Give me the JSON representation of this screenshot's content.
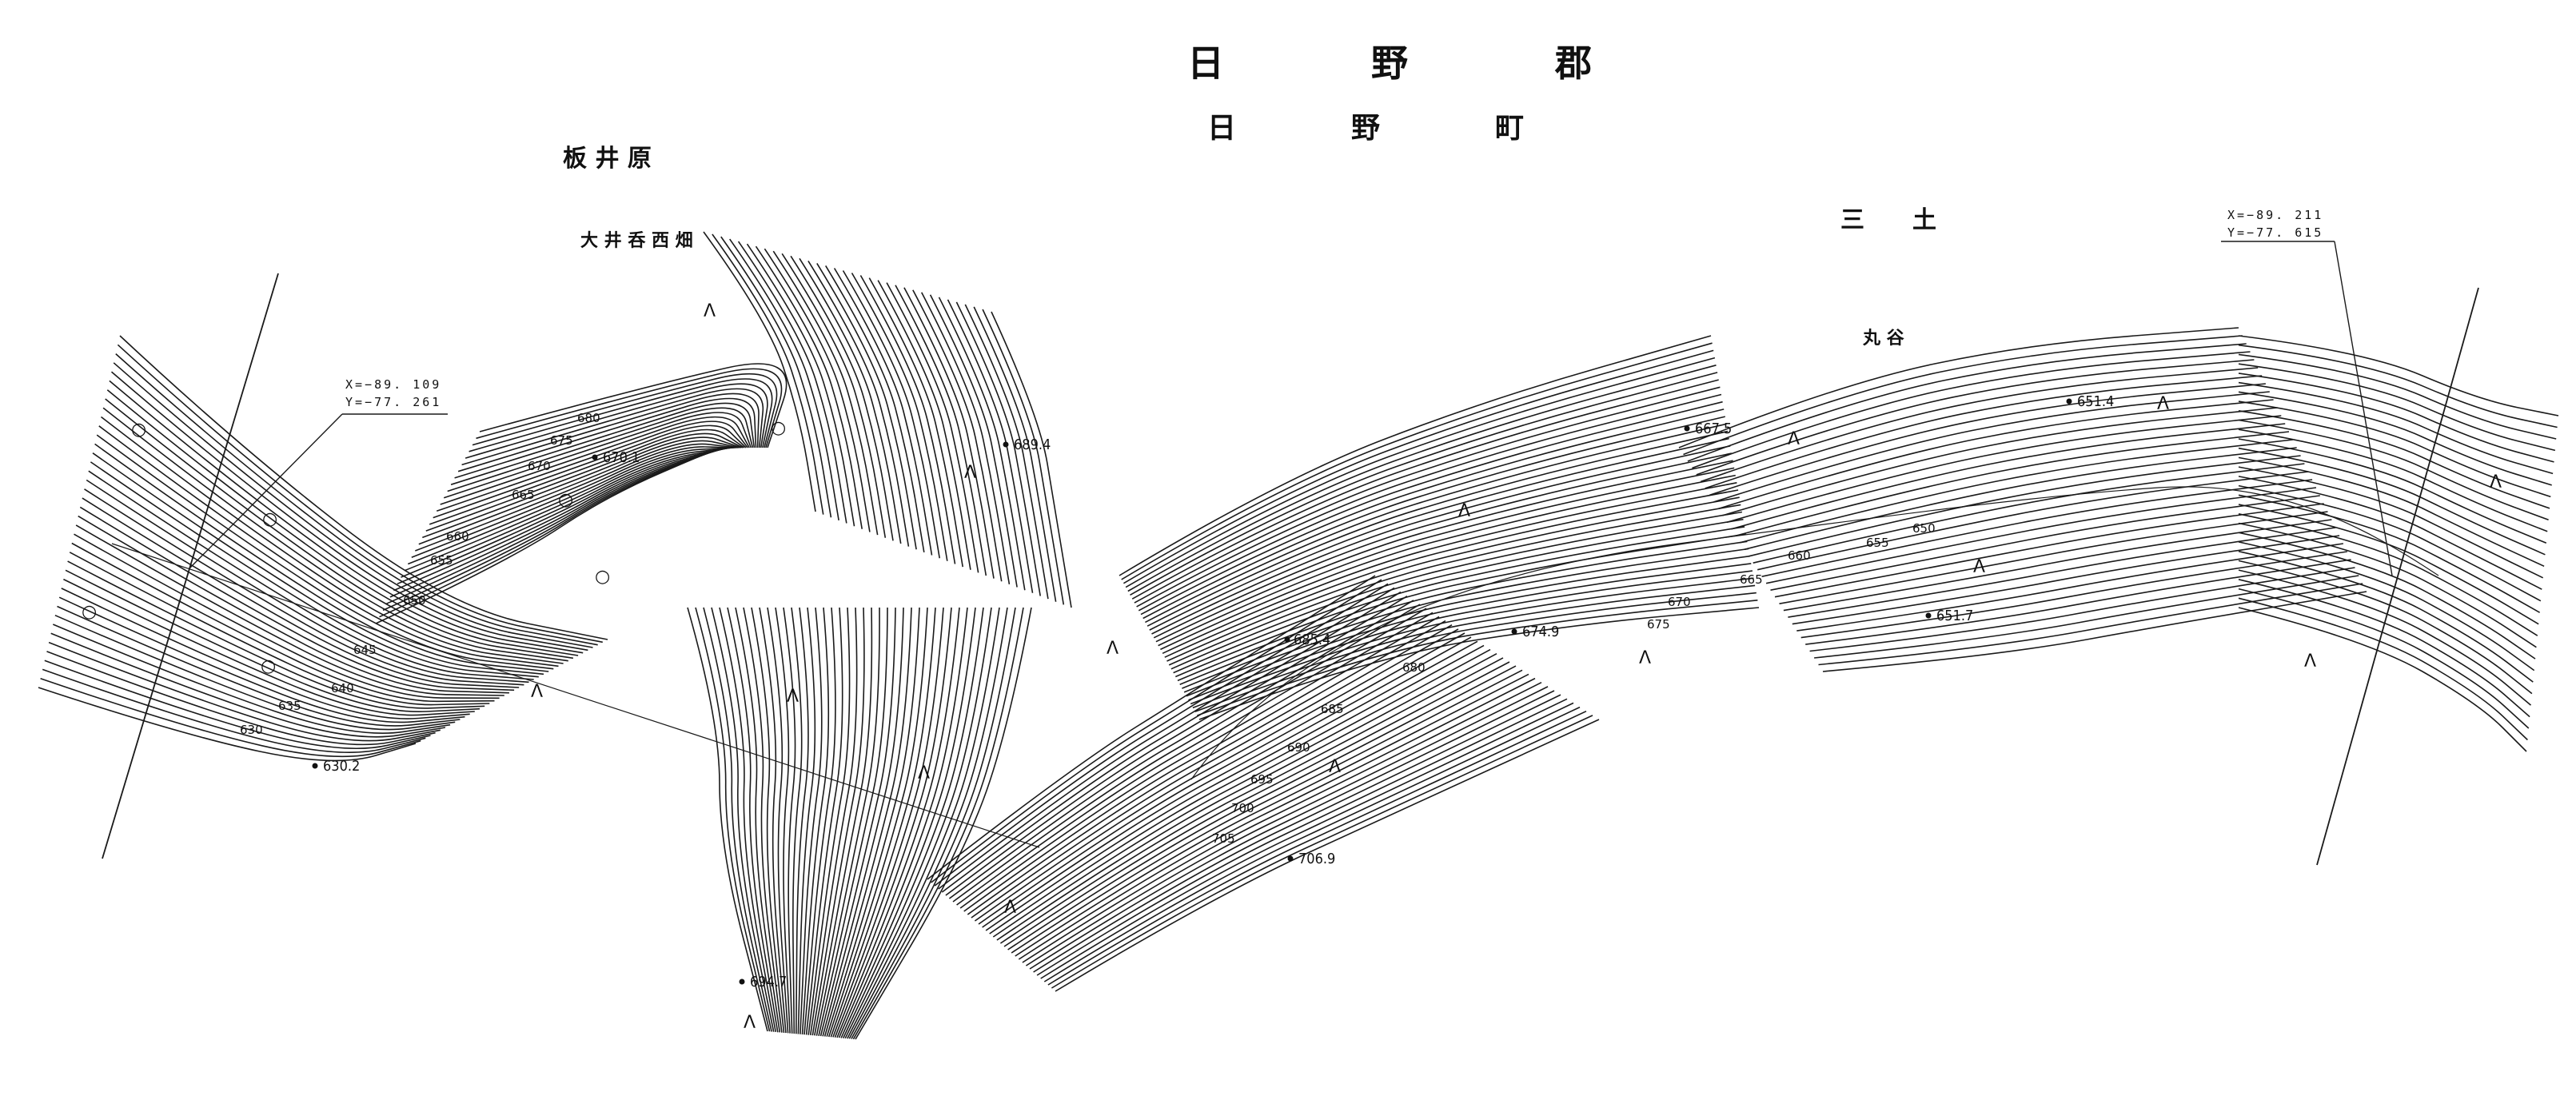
{
  "title": {
    "district": "日　　　　野　　　　郡",
    "town": "日　　　　野　　　　町"
  },
  "places": {
    "itaibara": "板 井 原",
    "ooi_nishihata": "大 井 呑 西 畑",
    "mitsuchi": "三　　土",
    "marudani": "丸 谷"
  },
  "coordinates": {
    "left": {
      "x": "X=−89. 109",
      "y": "Y=−77. 261"
    },
    "right": {
      "x": "X=−89. 211",
      "y": "Y=−77. 615"
    }
  },
  "spot_heights": [
    "670.1",
    "689.4",
    "630.2",
    "694.7",
    "685.4",
    "674.9",
    "706.9",
    "667.5",
    "651.4",
    "651.7"
  ],
  "contour_labels": {
    "west": [
      "680",
      "675",
      "670",
      "665",
      "660",
      "655",
      "650",
      "645",
      "640",
      "635",
      "630"
    ],
    "east": [
      "680",
      "675",
      "670",
      "665",
      "660",
      "655",
      "650"
    ],
    "south": [
      "685",
      "690",
      "695",
      "700",
      "705"
    ]
  },
  "symbols": {
    "wasteland": "Λ",
    "point": "○"
  }
}
